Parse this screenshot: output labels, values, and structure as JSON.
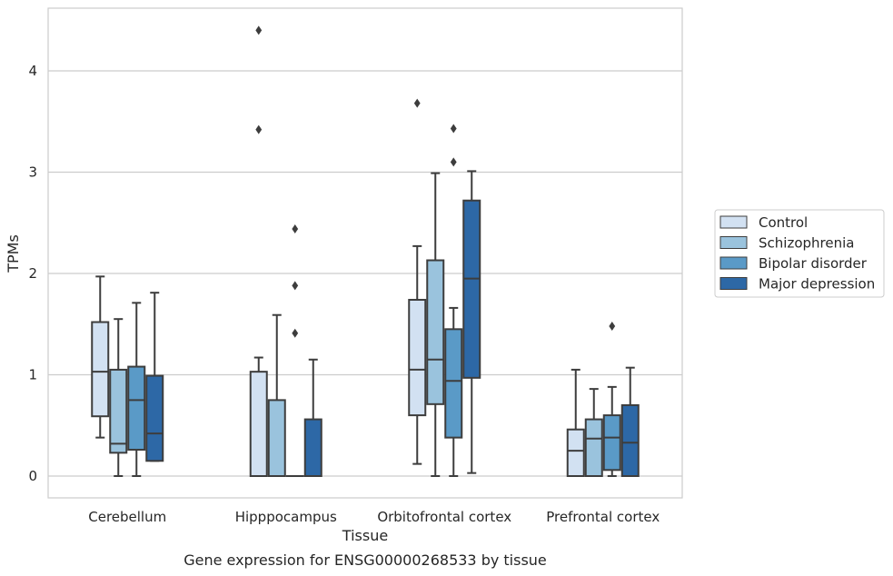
{
  "caption": "Gene expression for ENSG00000268533 by tissue",
  "chart_data": {
    "type": "box",
    "xlabel": "Tissue",
    "ylabel": "TPMs",
    "ylim": [
      -0.22,
      4.6
    ],
    "yticks": [
      0,
      1,
      2,
      3,
      4
    ],
    "grid": "horizontal",
    "legend_position": "right",
    "categories": [
      "Cerebellum",
      "Hipppocampus",
      "Orbitofrontal cortex",
      "Prefrontal cortex"
    ],
    "series": [
      {
        "name": "Control",
        "color": "#d2e1f2",
        "boxes": [
          {
            "whislo": 0.38,
            "q1": 0.59,
            "med": 1.03,
            "q3": 1.52,
            "whishi": 1.97,
            "fliers": []
          },
          {
            "whislo": 0.0,
            "q1": 0.0,
            "med": 0.0,
            "q3": 1.03,
            "whishi": 1.17,
            "fliers": [
              3.42,
              4.4
            ]
          },
          {
            "whislo": 0.12,
            "q1": 0.6,
            "med": 1.05,
            "q3": 1.74,
            "whishi": 2.27,
            "fliers": [
              3.68
            ]
          },
          {
            "whislo": 0.0,
            "q1": 0.0,
            "med": 0.25,
            "q3": 0.46,
            "whishi": 1.05,
            "fliers": []
          }
        ]
      },
      {
        "name": "Schizophrenia",
        "color": "#9ac3dd",
        "boxes": [
          {
            "whislo": 0.0,
            "q1": 0.23,
            "med": 0.32,
            "q3": 1.05,
            "whishi": 1.55,
            "fliers": []
          },
          {
            "whislo": 0.0,
            "q1": 0.0,
            "med": 0.0,
            "q3": 0.75,
            "whishi": 1.59,
            "fliers": []
          },
          {
            "whislo": 0.0,
            "q1": 0.71,
            "med": 1.15,
            "q3": 2.13,
            "whishi": 2.99,
            "fliers": []
          },
          {
            "whislo": 0.0,
            "q1": 0.0,
            "med": 0.37,
            "q3": 0.56,
            "whishi": 0.86,
            "fliers": []
          }
        ]
      },
      {
        "name": "Bipolar disorder",
        "color": "#5a9ac7",
        "boxes": [
          {
            "whislo": 0.0,
            "q1": 0.26,
            "med": 0.75,
            "q3": 1.08,
            "whishi": 1.71,
            "fliers": []
          },
          {
            "whislo": 0.0,
            "q1": 0.0,
            "med": 0.0,
            "q3": 0.0,
            "whishi": 0.0,
            "fliers": [
              1.41,
              1.88,
              2.44
            ]
          },
          {
            "whislo": 0.0,
            "q1": 0.38,
            "med": 0.94,
            "q3": 1.45,
            "whishi": 1.66,
            "fliers": [
              3.1,
              3.43
            ]
          },
          {
            "whislo": 0.0,
            "q1": 0.06,
            "med": 0.38,
            "q3": 0.6,
            "whishi": 0.88,
            "fliers": [
              1.48
            ]
          }
        ]
      },
      {
        "name": "Major depression",
        "color": "#2d68a6",
        "boxes": [
          {
            "whislo": 0.15,
            "q1": 0.15,
            "med": 0.42,
            "q3": 0.99,
            "whishi": 1.81,
            "fliers": []
          },
          {
            "whislo": 0.0,
            "q1": 0.0,
            "med": 0.0,
            "q3": 0.56,
            "whishi": 1.15,
            "fliers": []
          },
          {
            "whislo": 0.03,
            "q1": 0.97,
            "med": 1.95,
            "q3": 2.72,
            "whishi": 3.01,
            "fliers": []
          },
          {
            "whislo": 0.0,
            "q1": 0.0,
            "med": 0.33,
            "q3": 0.7,
            "whishi": 1.07,
            "fliers": []
          }
        ]
      }
    ]
  }
}
